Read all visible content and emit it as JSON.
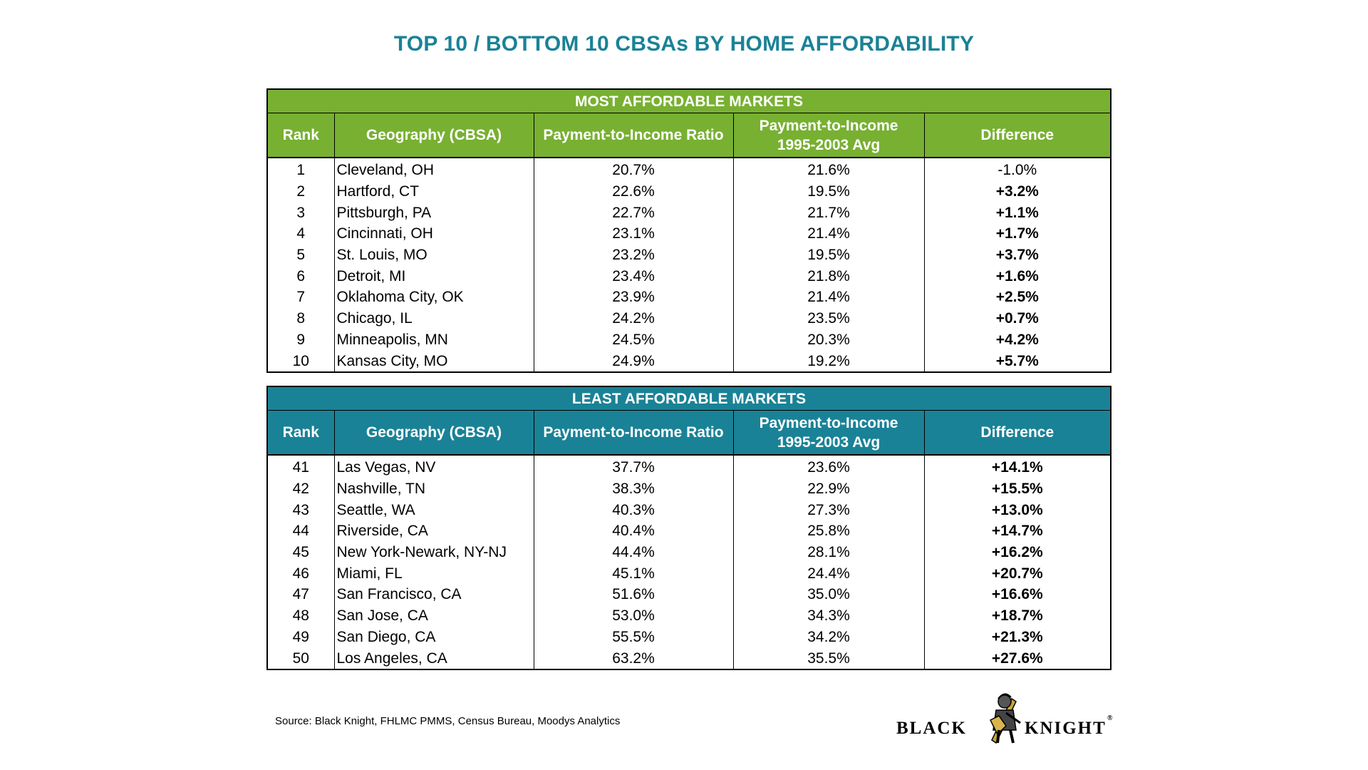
{
  "title": "TOP 10 / BOTTOM 10 CBSAs BY HOME AFFORDABILITY",
  "colors": {
    "title": "#1a8296",
    "most_affordable_header": "#78b032",
    "least_affordable_header": "#1a8296"
  },
  "columns": {
    "rank": "Rank",
    "geography": "Geography (CBSA)",
    "ratio": "Payment-to-Income Ratio",
    "avg_line1": "Payment-to-Income",
    "avg_line2": "1995-2003 Avg",
    "difference": "Difference"
  },
  "chart_data": {
    "type": "table",
    "tables": [
      {
        "title": "MOST AFFORDABLE MARKETS",
        "rows": [
          {
            "rank": "1",
            "geo": "Cleveland, OH",
            "ratio": "20.7%",
            "avg": "21.6%",
            "diff": "-1.0%"
          },
          {
            "rank": "2",
            "geo": "Hartford, CT",
            "ratio": "22.6%",
            "avg": "19.5%",
            "diff": "+3.2%"
          },
          {
            "rank": "3",
            "geo": "Pittsburgh, PA",
            "ratio": "22.7%",
            "avg": "21.7%",
            "diff": "+1.1%"
          },
          {
            "rank": "4",
            "geo": "Cincinnati, OH",
            "ratio": "23.1%",
            "avg": "21.4%",
            "diff": "+1.7%"
          },
          {
            "rank": "5",
            "geo": "St. Louis, MO",
            "ratio": "23.2%",
            "avg": "19.5%",
            "diff": "+3.7%"
          },
          {
            "rank": "6",
            "geo": "Detroit, MI",
            "ratio": "23.4%",
            "avg": "21.8%",
            "diff": "+1.6%"
          },
          {
            "rank": "7",
            "geo": "Oklahoma City, OK",
            "ratio": "23.9%",
            "avg": "21.4%",
            "diff": "+2.5%"
          },
          {
            "rank": "8",
            "geo": "Chicago, IL",
            "ratio": "24.2%",
            "avg": "23.5%",
            "diff": "+0.7%"
          },
          {
            "rank": "9",
            "geo": "Minneapolis, MN",
            "ratio": "24.5%",
            "avg": "20.3%",
            "diff": "+4.2%"
          },
          {
            "rank": "10",
            "geo": "Kansas City, MO",
            "ratio": "24.9%",
            "avg": "19.2%",
            "diff": "+5.7%"
          }
        ]
      },
      {
        "title": "LEAST AFFORDABLE MARKETS",
        "rows": [
          {
            "rank": "41",
            "geo": "Las Vegas, NV",
            "ratio": "37.7%",
            "avg": "23.6%",
            "diff": "+14.1%"
          },
          {
            "rank": "42",
            "geo": "Nashville, TN",
            "ratio": "38.3%",
            "avg": "22.9%",
            "diff": "+15.5%"
          },
          {
            "rank": "43",
            "geo": "Seattle, WA",
            "ratio": "40.3%",
            "avg": "27.3%",
            "diff": "+13.0%"
          },
          {
            "rank": "44",
            "geo": "Riverside, CA",
            "ratio": "40.4%",
            "avg": "25.8%",
            "diff": "+14.7%"
          },
          {
            "rank": "45",
            "geo": "New York-Newark, NY-NJ",
            "ratio": "44.4%",
            "avg": "28.1%",
            "diff": "+16.2%"
          },
          {
            "rank": "46",
            "geo": "Miami, FL",
            "ratio": "45.1%",
            "avg": "24.4%",
            "diff": "+20.7%"
          },
          {
            "rank": "47",
            "geo": "San Francisco, CA",
            "ratio": "51.6%",
            "avg": "35.0%",
            "diff": "+16.6%"
          },
          {
            "rank": "48",
            "geo": "San Jose, CA",
            "ratio": "53.0%",
            "avg": "34.3%",
            "diff": "+18.7%"
          },
          {
            "rank": "49",
            "geo": "San Diego, CA",
            "ratio": "55.5%",
            "avg": "34.2%",
            "diff": "+21.3%"
          },
          {
            "rank": "50",
            "geo": "Los Angeles, CA",
            "ratio": "63.2%",
            "avg": "35.5%",
            "diff": "+27.6%"
          }
        ]
      }
    ]
  },
  "source": "Source: Black Knight, FHLMC PMMS, Census Bureau, Moodys Analytics",
  "logo": {
    "left_text": "BLACK",
    "right_text": "KNIGHT"
  }
}
